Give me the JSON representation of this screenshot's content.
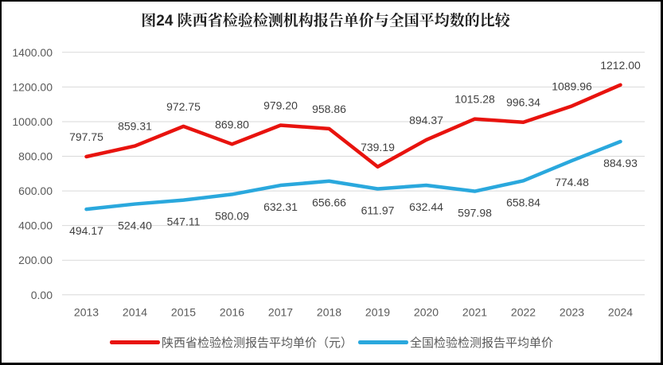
{
  "chart_data": {
    "type": "line",
    "title": "图24 陕西省检验检测机构报告单价与全国平均数的比较",
    "categories": [
      "2013",
      "2014",
      "2015",
      "2016",
      "2017",
      "2018",
      "2019",
      "2020",
      "2021",
      "2022",
      "2023",
      "2024"
    ],
    "series": [
      {
        "name": "陕西省检验检测报告平均单价（元）",
        "color": "#e8130e",
        "values": [
          797.75,
          859.31,
          972.75,
          869.8,
          979.2,
          958.86,
          739.19,
          894.37,
          1015.28,
          996.34,
          1089.96,
          1212.0
        ],
        "label_position": "above"
      },
      {
        "name": "全国检验检测报告平均单价",
        "color": "#2aa8dd",
        "values": [
          494.17,
          524.4,
          547.11,
          580.09,
          632.31,
          656.66,
          611.97,
          632.44,
          597.98,
          658.84,
          774.48,
          884.93
        ],
        "label_position": "below"
      }
    ],
    "ylim": [
      0,
      1400
    ],
    "ytick_step": 200,
    "ytick_labels": [
      "0.00",
      "200.00",
      "400.00",
      "600.00",
      "800.00",
      "1000.00",
      "1200.00",
      "1400.00"
    ],
    "xlabel": "",
    "ylabel": "",
    "grid": true,
    "legend_position": "bottom",
    "data_label_decimals": 2
  },
  "colors": {
    "background": "#ffffff",
    "border": "#000000",
    "gridline": "#d9d9d9",
    "axis_text": "#595959",
    "data_label_text": "#404040",
    "title_text": "#1f1f1f",
    "legend_text": "#595959"
  }
}
